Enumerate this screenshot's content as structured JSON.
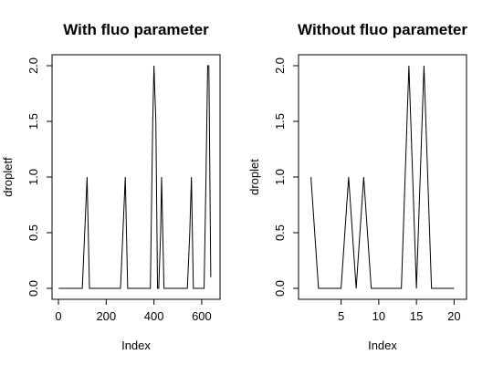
{
  "chart_data": [
    {
      "type": "line",
      "title": "With fluo parameter",
      "xlabel": "Index",
      "ylabel": "dropletf",
      "xlim": [
        0,
        650
      ],
      "ylim": [
        0,
        2
      ],
      "xticks": [
        0,
        200,
        400,
        600
      ],
      "yticks": [
        0.0,
        0.5,
        1.0,
        1.5,
        2.0
      ],
      "xtick_labels": [
        "0",
        "200",
        "400",
        "600"
      ],
      "ytick_labels": [
        "0.0",
        "0.5",
        "1.0",
        "1.5",
        "2.0"
      ],
      "series": [
        {
          "points": [
            [
              1,
              0
            ],
            [
              100,
              0
            ],
            [
              110,
              0.5
            ],
            [
              120,
              1
            ],
            [
              130,
              0
            ],
            [
              260,
              0
            ],
            [
              270,
              0.5
            ],
            [
              280,
              1
            ],
            [
              290,
              0
            ],
            [
              385,
              0
            ],
            [
              395,
              1.5
            ],
            [
              400,
              2
            ],
            [
              408,
              1.5
            ],
            [
              415,
              0
            ],
            [
              420,
              0
            ],
            [
              428,
              0.5
            ],
            [
              432,
              1
            ],
            [
              442,
              0
            ],
            [
              540,
              0
            ],
            [
              550,
              0.5
            ],
            [
              557,
              1
            ],
            [
              565,
              0
            ],
            [
              590,
              0
            ],
            [
              610,
              0
            ],
            [
              618,
              1
            ],
            [
              625,
              2
            ],
            [
              630,
              2
            ],
            [
              638,
              0.1
            ]
          ]
        }
      ]
    },
    {
      "type": "line",
      "title": "Without fluo parameter",
      "xlabel": "Index",
      "ylabel": "droplet",
      "xlim": [
        0.2,
        20.8
      ],
      "ylim": [
        0,
        2
      ],
      "xticks": [
        5,
        10,
        15,
        20
      ],
      "yticks": [
        0.0,
        0.5,
        1.0,
        1.5,
        2.0
      ],
      "xtick_labels": [
        "5",
        "10",
        "15",
        "20"
      ],
      "ytick_labels": [
        "0.0",
        "0.5",
        "1.0",
        "1.5",
        "2.0"
      ],
      "series": [
        {
          "points": [
            [
              1,
              1
            ],
            [
              2,
              0
            ],
            [
              3,
              0
            ],
            [
              4,
              0
            ],
            [
              5,
              0
            ],
            [
              6,
              1
            ],
            [
              7,
              0
            ],
            [
              8,
              1
            ],
            [
              9,
              0
            ],
            [
              10,
              0
            ],
            [
              11,
              0
            ],
            [
              12,
              0
            ],
            [
              13,
              0
            ],
            [
              14,
              2
            ],
            [
              15,
              0
            ],
            [
              16,
              2
            ],
            [
              17,
              0
            ],
            [
              18,
              0
            ],
            [
              19,
              0
            ],
            [
              20,
              0
            ]
          ]
        }
      ]
    }
  ]
}
